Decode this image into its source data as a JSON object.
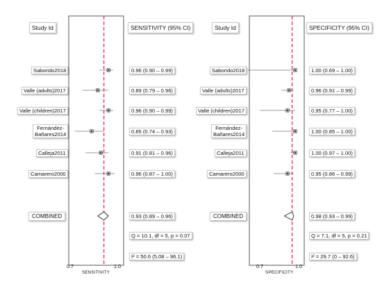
{
  "headers": {
    "left_study": "Study Id",
    "left_measure": "SENSITIVITY (95% CI)",
    "right_study": "Study Id",
    "right_measure": "SPECIFICITY (95% CI)"
  },
  "colors": {
    "frame": "#555555",
    "reference_line": "#e0245e",
    "ci_line": "#777777",
    "point": "#1a1a1a"
  },
  "chart_data": [
    {
      "type": "forest",
      "measure": "SENSITIVITY (95% CI)",
      "xlabel": "SENSITIVITY",
      "xticks": [
        "0.7",
        "1.0"
      ],
      "xlim": [
        0.7,
        1.0
      ],
      "reference_line": 0.93,
      "studies": [
        {
          "name": "Saborido2018",
          "estimate": 0.96,
          "lower": 0.9,
          "upper": 0.99,
          "label": "0.96 (0.90 – 0.99)"
        },
        {
          "name": "Valle (adults)2017",
          "estimate": 0.89,
          "lower": 0.79,
          "upper": 0.96,
          "label": "0.89 (0.79 – 0.96)"
        },
        {
          "name": "Valle (children)2017",
          "estimate": 0.96,
          "lower": 0.9,
          "upper": 0.99,
          "label": "0.96 (0.90 – 0.99)"
        },
        {
          "name": "Fernández-\nBañares2014",
          "estimate": 0.85,
          "lower": 0.74,
          "upper": 0.93,
          "label": "0.85 (0.74 – 0.93)"
        },
        {
          "name": "Calleja2011",
          "estimate": 0.91,
          "lower": 0.81,
          "upper": 0.96,
          "label": "0.91 (0.81 – 0.96)"
        },
        {
          "name": "Camarero2000",
          "estimate": 0.96,
          "lower": 0.87,
          "upper": 1.0,
          "label": "0.96 (0.87 – 1.00)"
        }
      ],
      "combined": {
        "name": "COMBINED",
        "estimate": 0.93,
        "lower": 0.89,
        "upper": 0.96,
        "label": "0.93 (0.89 – 0.96)"
      },
      "heterogeneity": [
        "Q = 10.1, df = 5, p = 0.07",
        "I² = 50.6 (5.08 – 96.1)"
      ]
    },
    {
      "type": "forest",
      "measure": "SPECIFICITY (95% CI)",
      "xlabel": "SPECIFICITY",
      "xticks": [
        "0.7",
        "1.0"
      ],
      "xlim": [
        0.7,
        1.0
      ],
      "reference_line": 0.98,
      "studies": [
        {
          "name": "Saborido2018",
          "estimate": 1.0,
          "lower": 0.69,
          "upper": 1.0,
          "label": "1.00 (0.69 – 1.00)"
        },
        {
          "name": "Valle (adults)2017",
          "estimate": 0.96,
          "lower": 0.91,
          "upper": 0.99,
          "label": "0.96 (0.91 – 0.99)"
        },
        {
          "name": "Valle (children)2017",
          "estimate": 0.95,
          "lower": 0.77,
          "upper": 1.0,
          "label": "0.95 (0.77 – 1.00)"
        },
        {
          "name": "Fernández-\nBañares2014",
          "estimate": 1.0,
          "lower": 0.85,
          "upper": 1.0,
          "label": "1.00 (0.85 – 1.00)"
        },
        {
          "name": "Calleja2011",
          "estimate": 1.0,
          "lower": 0.97,
          "upper": 1.0,
          "label": "1.00 (0.97 – 1.00)"
        },
        {
          "name": "Camarero2000",
          "estimate": 0.95,
          "lower": 0.86,
          "upper": 0.99,
          "label": "0.95 (0.86 – 0.99)"
        }
      ],
      "combined": {
        "name": "COMBINED",
        "estimate": 0.98,
        "lower": 0.93,
        "upper": 0.99,
        "label": "0.98 (0.93 – 0.99)"
      },
      "heterogeneity": [
        "Q = 7.1, df = 5, p = 0.21",
        "I² = 29.7 (0 – 92.6)"
      ]
    }
  ]
}
